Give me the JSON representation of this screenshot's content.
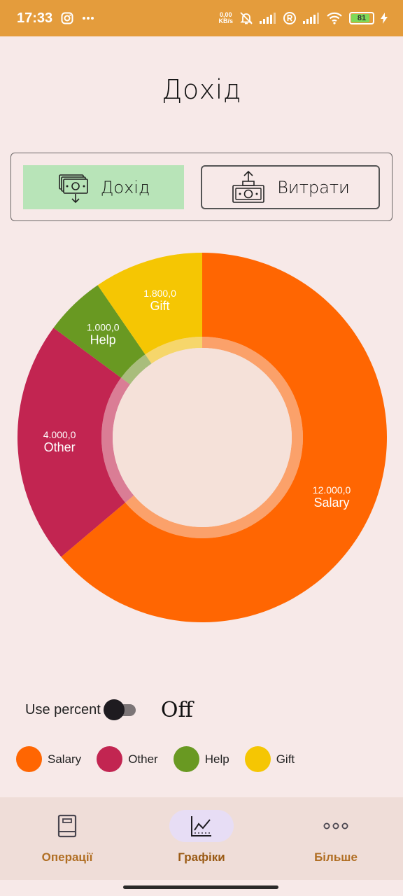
{
  "status_bar": {
    "time": "17:33",
    "net_speed_value": "0,00",
    "net_speed_unit": "KB/s",
    "battery": "81",
    "bg_color": "#e49c3c"
  },
  "page": {
    "title": "Дохід"
  },
  "type_toggle": {
    "income_label": "Дохід",
    "expense_label": "Витрати",
    "selected": "income",
    "selected_color": "#b8e4b8"
  },
  "chart_data": {
    "type": "pie",
    "variant": "donut",
    "categories": [
      "Salary",
      "Other",
      "Help",
      "Gift"
    ],
    "values": [
      12000,
      4000,
      1000,
      1800
    ],
    "value_labels": [
      "12.000,0",
      "4.000,0",
      "1.000,0",
      "1.800,0"
    ],
    "colors": [
      "#ff6602",
      "#c22551",
      "#699922",
      "#f5c603"
    ],
    "start_angle_deg": 0,
    "direction": "clockwise"
  },
  "percent_toggle": {
    "label": "Use percent",
    "state_text": "Off",
    "enabled": false
  },
  "legend": [
    {
      "label": "Salary",
      "color": "#ff6602"
    },
    {
      "label": "Other",
      "color": "#c22551"
    },
    {
      "label": "Help",
      "color": "#699922"
    },
    {
      "label": "Gift",
      "color": "#f5c603"
    }
  ],
  "bottom_nav": {
    "items": [
      {
        "label": "Операції",
        "icon": "book-icon",
        "active": false
      },
      {
        "label": "Графіки",
        "icon": "chart-icon",
        "active": true
      },
      {
        "label": "Більше",
        "icon": "more-dots-icon",
        "active": false
      }
    ]
  }
}
